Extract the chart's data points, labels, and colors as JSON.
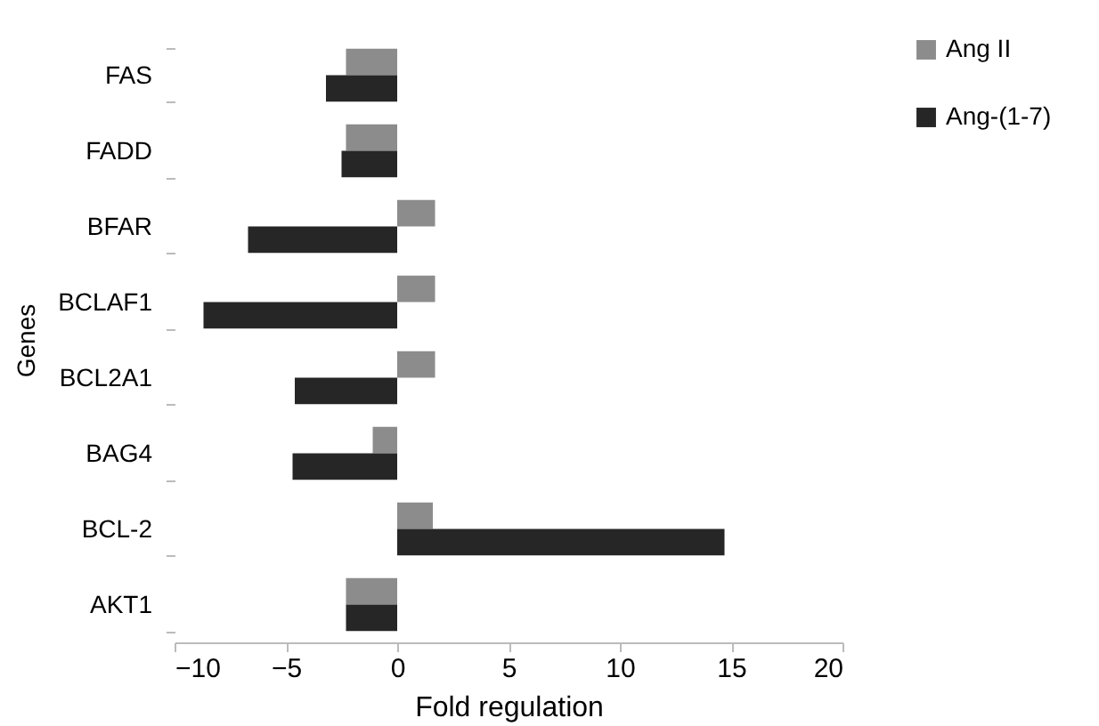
{
  "chart_data": {
    "type": "bar",
    "orientation": "horizontal",
    "xlabel": "Fold regulation",
    "ylabel": "Genes",
    "categories": [
      "FAS",
      "FADD",
      "BFAR",
      "BCLAF1",
      "BCL2A1",
      "BAG4",
      "BCL-2",
      "AKT1"
    ],
    "series": [
      {
        "name": "Ang II",
        "color": "#8c8c8c",
        "values": [
          -2.3,
          -2.3,
          1.7,
          1.7,
          1.7,
          -1.1,
          1.6,
          -2.3
        ]
      },
      {
        "name": "Ang-(1-7)",
        "color": "#262626",
        "values": [
          -3.2,
          -2.5,
          -6.7,
          -8.7,
          -4.6,
          -4.7,
          14.7,
          -2.3
        ]
      }
    ],
    "xlim": [
      -10,
      20
    ],
    "xticks": [
      -10,
      -5,
      0,
      5,
      10,
      15,
      20
    ],
    "legend": "right",
    "grid": false
  }
}
